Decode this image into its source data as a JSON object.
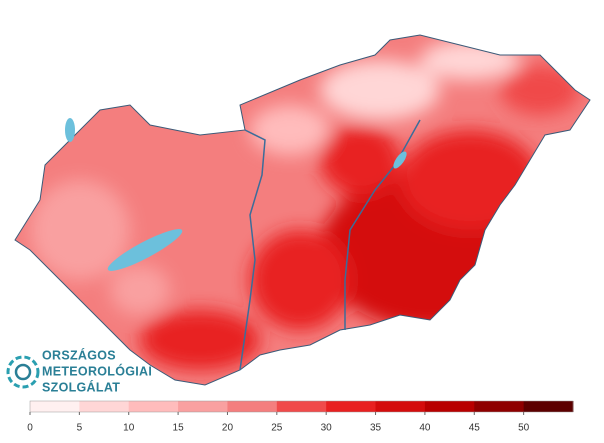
{
  "logo": {
    "lines": [
      "ORSZÁGOS",
      "METEOROLÓGIAI",
      "SZOLGÁLAT"
    ]
  },
  "legend": {
    "range": [
      0,
      55
    ],
    "ticks": [
      0,
      5,
      10,
      15,
      20,
      25,
      30,
      35,
      40,
      45,
      50
    ],
    "colors": [
      "#fff0f0",
      "#ffd6d6",
      "#ffbcbc",
      "#f9a0a0",
      "#f47e7e",
      "#f04a4a",
      "#e82020",
      "#d40c0c",
      "#b80000",
      "#8e0000",
      "#5c0000"
    ]
  }
}
